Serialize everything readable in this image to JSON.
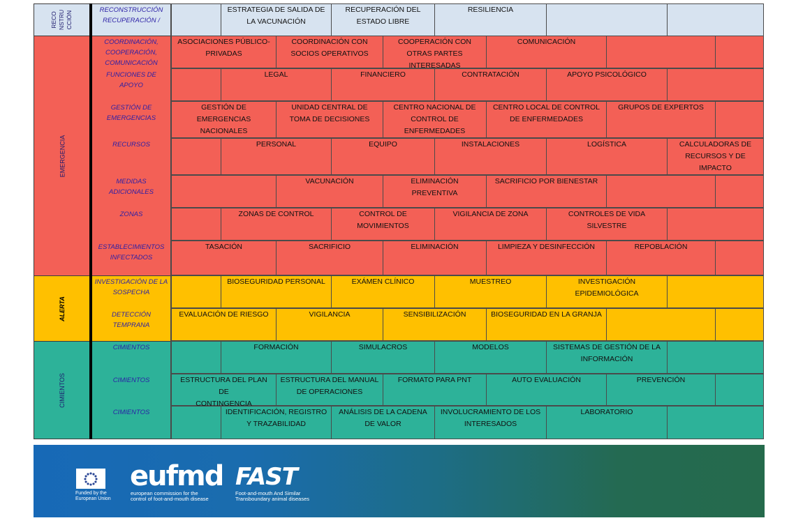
{
  "colors": {
    "reconstruction": "#d7e3f0",
    "emergency": "#f36056",
    "alert": "#ffc000",
    "foundations": "#2db299",
    "label_text": "#2b1fa6",
    "footer_start": "#1769b7",
    "footer_end": "#256a4c"
  },
  "bands": {
    "reconstruction": "RECO\nNSTRU\nCCIÓN",
    "emergency": "EMERGENCIA",
    "alert": "ALERTA",
    "foundations": "CIMIENTOS"
  },
  "rows": [
    {
      "band": "reconstruction",
      "label": "RECONSTRUCCIÓN\nRECUPERACIÓN /",
      "cells": [
        "",
        "ESTRATEGIA DE SALIDA DE\nLA VACUNACIÓN",
        "RECUPERACIÓN DEL\nESTADO LIBRE",
        "RESILIENCIA",
        "",
        ""
      ]
    },
    {
      "band": "emergency",
      "label": "COORDINACIÓN,\nCOOPERACIÓN,\nCOMUNICACIÓN",
      "cells": [
        "ASOCIACIONES PÚBLICO-\nPRIVADAS",
        "COORDINACIÓN CON\nSOCIOS OPERATIVOS",
        "COOPERACIÓN CON\nOTRAS PARTES\nINTERESADAS",
        "COMUNICACIÓN",
        "",
        ""
      ]
    },
    {
      "band": "emergency",
      "label": "FUNCIONES DE APOYO",
      "cells": [
        "",
        "LEGAL",
        "FINANCIERO",
        "CONTRATACIÓN",
        "APOYO PSICOLÓGICO",
        ""
      ]
    },
    {
      "band": "emergency",
      "label": "GESTIÓN DE\nEMERGENCIAS",
      "cells": [
        "GESTIÓN DE\nEMERGENCIAS\nNACIONALES",
        "UNIDAD CENTRAL DE\nTOMA DE DECISIONES",
        "CENTRO NACIONAL DE\nCONTROL DE\nENFERMEDADES",
        "CENTRO LOCAL DE CONTROL\nDE ENFERMEDADES",
        "GRUPOS DE EXPERTOS",
        ""
      ]
    },
    {
      "band": "emergency",
      "label": "RECURSOS",
      "cells": [
        "",
        "PERSONAL",
        "EQUIPO",
        "INSTALACIONES",
        "LOGÍSTICA",
        "CALCULADORAS DE\nRECURSOS Y DE\nIMPACTO"
      ]
    },
    {
      "band": "emergency",
      "label": "MEDIDAS\nADICIONALES",
      "cells": [
        "",
        "VACUNACIÓN",
        "ELIMINACIÓN\nPREVENTIVA",
        "SACRIFICIO POR BIENESTAR",
        "",
        ""
      ]
    },
    {
      "band": "emergency",
      "label": "ZONAS",
      "cells": [
        "",
        "ZONAS DE CONTROL",
        "CONTROL DE\nMOVIMIENTOS",
        "VIGILANCIA DE ZONA",
        "CONTROLES DE VIDA SILVESTRE",
        ""
      ]
    },
    {
      "band": "emergency",
      "label": "ESTABLECIMIENTOS\nINFECTADOS",
      "cells": [
        "TASACIÓN",
        "SACRIFICIO",
        "ELIMINACIÓN",
        "LIMPIEZA Y DESINFECCIÓN",
        "REPOBLACIÓN",
        ""
      ]
    },
    {
      "band": "alert",
      "label": "INVESTIGACIÓN  DE LA\nSOSPECHA",
      "cells": [
        "",
        "BIOSEGURIDAD PERSONAL",
        "EXÁMEN CLÍNICO",
        "MUESTREO",
        "INVESTIGACIÓN\nEPIDEMIOLÓGICA",
        ""
      ]
    },
    {
      "band": "alert",
      "label": "DETECCIÓN\nTEMPRANA",
      "cells": [
        "EVALUACIÓN DE RIESGO",
        "VIGILANCIA",
        "SENSIBILIZACIÓN",
        "BIOSEGURIDAD EN LA GRANJA",
        "",
        ""
      ]
    },
    {
      "band": "foundations",
      "label": "CIMIENTOS",
      "cells": [
        "",
        "FORMACIÓN",
        "SIMULACROS",
        "MODELOS",
        "SISTEMAS DE GESTIÓN DE LA\nINFORMACIÓN",
        ""
      ]
    },
    {
      "band": "foundations",
      "label": "CIMIENTOS",
      "cells": [
        "ESTRUCTURA DEL PLAN DE\nCONTINGENCIA",
        "ESTRUCTURA DEL MANUAL\nDE OPERACIONES",
        "FORMATO PARA PNT",
        "AUTO EVALUACIÓN",
        "PREVENCIÓN",
        ""
      ]
    },
    {
      "band": "foundations",
      "label": "CIMIENTOS",
      "cells": [
        "",
        "IDENTIFICACIÓN, REGISTRO\nY TRAZABILIDAD",
        "ANÁLISIS DE LA CADENA\nDE VALOR",
        "INVOLUCRAMIENTO DE LOS\nINTERESADOS",
        "LABORATORIO",
        ""
      ]
    }
  ],
  "footer": {
    "eu_caption": "Funded by the\nEuropean Union",
    "eufmd_logo": "eufmd",
    "eufmd_caption": "european commission for the\ncontrol of foot-and-mouth disease",
    "fast_logo": "FAST",
    "fast_caption": "Foot-and-mouth And Similar\nTransboundary animal diseases"
  }
}
